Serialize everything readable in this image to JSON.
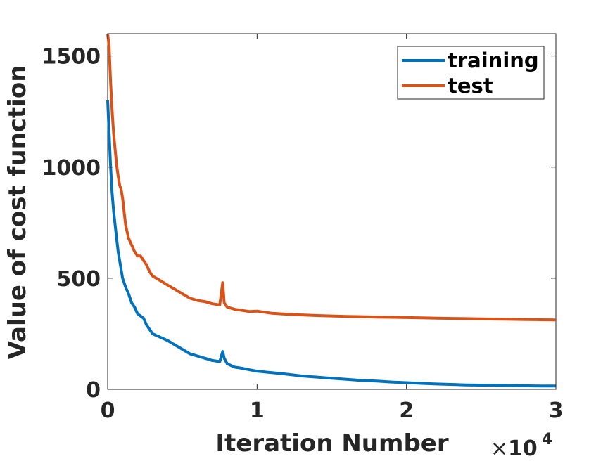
{
  "chart_data": {
    "type": "line",
    "title": "",
    "xlabel": "Iteration Number",
    "ylabel": "Value of cost function",
    "x_exponent_label": {
      "times": "×",
      "base": "10",
      "power": "4"
    },
    "xlim": [
      0,
      30000
    ],
    "ylim": [
      0,
      1600
    ],
    "xticks": [
      0,
      10000,
      20000,
      30000
    ],
    "xtick_labels": [
      "0",
      "1",
      "2",
      "3"
    ],
    "yticks": [
      0,
      500,
      1000,
      1500
    ],
    "ytick_labels": [
      "0",
      "500",
      "1000",
      "1500"
    ],
    "grid": false,
    "legend_position": "top-right",
    "x": [
      0,
      100,
      200,
      300,
      400,
      500,
      600,
      700,
      800,
      900,
      1000,
      1200,
      1400,
      1600,
      1800,
      2000,
      2200,
      2400,
      2600,
      2800,
      3000,
      3500,
      4000,
      4500,
      5000,
      5500,
      6000,
      6500,
      7000,
      7500,
      7700,
      7800,
      8000,
      8500,
      9000,
      9500,
      10000,
      11000,
      12000,
      13000,
      14000,
      15000,
      16000,
      17000,
      18000,
      19000,
      20000,
      21000,
      22000,
      23000,
      24000,
      25000,
      26000,
      27000,
      28000,
      29000,
      30000
    ],
    "series": [
      {
        "name": "training",
        "color": "#0072BD",
        "values": [
          1300,
          1150,
          1000,
          880,
          800,
          740,
          680,
          620,
          580,
          540,
          500,
          460,
          430,
          390,
          370,
          340,
          330,
          320,
          290,
          270,
          250,
          235,
          220,
          200,
          180,
          160,
          150,
          140,
          130,
          125,
          170,
          140,
          115,
          100,
          95,
          88,
          82,
          75,
          68,
          60,
          55,
          50,
          45,
          40,
          37,
          33,
          30,
          27,
          24,
          22,
          20,
          19,
          18,
          17,
          16,
          15,
          15
        ]
      },
      {
        "name": "test",
        "color": "#D95319",
        "values": [
          1600,
          1540,
          1380,
          1250,
          1150,
          1080,
          1010,
          960,
          920,
          900,
          860,
          740,
          680,
          650,
          620,
          600,
          600,
          580,
          560,
          530,
          510,
          490,
          470,
          450,
          430,
          410,
          400,
          395,
          385,
          380,
          480,
          390,
          370,
          360,
          355,
          350,
          352,
          342,
          338,
          335,
          332,
          330,
          328,
          327,
          325,
          324,
          323,
          322,
          320,
          319,
          318,
          317,
          316,
          315,
          314,
          313,
          312
        ]
      }
    ]
  }
}
